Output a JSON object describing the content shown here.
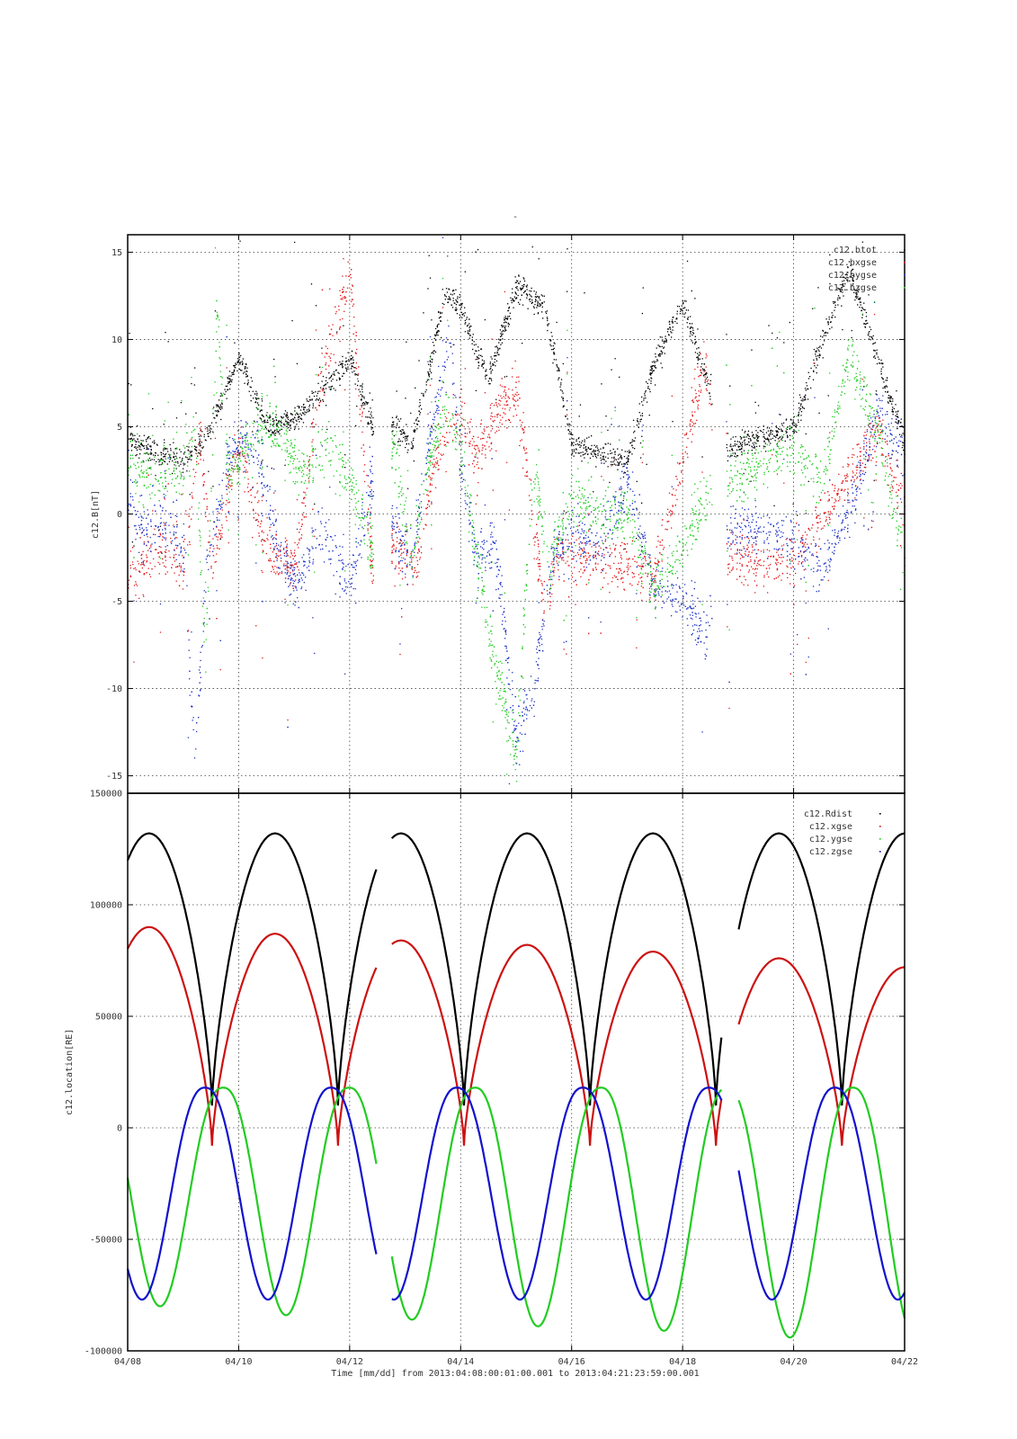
{
  "figure": {
    "top_title": "-",
    "xlabel": "Time [mm/dd]  from 2013:04:08:00:01:00.001  to  2013:04:21:23:59:00.001"
  },
  "chart_data": [
    {
      "type": "scatter",
      "ylabel": "c12.B[nT]",
      "ylim": [
        -16,
        16
      ],
      "yticks": [
        -15,
        -10,
        -5,
        0,
        5,
        10,
        15
      ],
      "xlim": [
        0,
        14
      ],
      "xtick_values": [
        0,
        2,
        4,
        6,
        8,
        10,
        12,
        14
      ],
      "xtick_labels": [
        "04/08",
        "04/10",
        "04/12",
        "04/14",
        "04/16",
        "04/18",
        "04/20",
        "04/22"
      ],
      "grid": true,
      "legend_position": "top-right",
      "data_gaps": [
        [
          4.42,
          4.75
        ],
        [
          10.52,
          10.78
        ]
      ],
      "series": [
        {
          "name": "c12.btot",
          "color": "#000000",
          "x": [
            0.0,
            0.5,
            1.0,
            1.5,
            2.0,
            2.5,
            3.0,
            3.5,
            4.0,
            4.4,
            4.8,
            5.1,
            5.4,
            5.7,
            6.0,
            6.3,
            6.5,
            6.7,
            7.0,
            7.5,
            8.0,
            8.5,
            9.0,
            9.5,
            10.0,
            10.4,
            10.8,
            11.0,
            11.5,
            12.0,
            12.5,
            13.0,
            13.5,
            14.0
          ],
          "y": [
            4.5,
            3.5,
            3.0,
            5.0,
            9.0,
            5.0,
            5.5,
            7.0,
            9.0,
            5.0,
            5.0,
            4.0,
            8.0,
            12.5,
            12.0,
            9.0,
            8.0,
            10.0,
            13.0,
            12.0,
            4.0,
            3.5,
            3.0,
            9.0,
            12.0,
            8.0,
            3.5,
            4.0,
            4.5,
            5.0,
            10.0,
            14.0,
            9.0,
            4.0
          ]
        },
        {
          "name": "c12.bxgse",
          "color": "#e41a1c",
          "x": [
            0.0,
            0.5,
            1.0,
            1.3,
            1.5,
            2.0,
            2.5,
            3.0,
            3.5,
            4.0,
            4.4,
            4.8,
            5.2,
            5.5,
            6.0,
            6.3,
            6.6,
            7.0,
            7.5,
            7.8,
            8.0,
            8.5,
            9.0,
            9.5,
            10.0,
            10.4,
            10.8,
            11.0,
            11.5,
            12.0,
            12.5,
            13.0,
            13.5,
            14.0
          ],
          "y": [
            -3.5,
            -2.0,
            -3.0,
            5.0,
            -3.0,
            4.0,
            -2.0,
            -3.0,
            8.0,
            14.0,
            -3.0,
            -2.0,
            -3.0,
            3.0,
            6.0,
            3.0,
            6.0,
            7.0,
            -5.0,
            -2.0,
            -2.5,
            -2.5,
            -3.0,
            -3.0,
            3.0,
            9.0,
            -2.5,
            -2.5,
            -3.0,
            -2.5,
            0.0,
            2.0,
            5.0,
            0.0
          ]
        },
        {
          "name": "c12.bygse",
          "color": "#1f32c8",
          "x": [
            0.0,
            0.3,
            0.6,
            1.0,
            1.2,
            1.4,
            1.8,
            2.0,
            2.3,
            2.7,
            3.0,
            3.5,
            4.0,
            4.4,
            4.8,
            5.1,
            5.4,
            5.8,
            6.0,
            6.3,
            6.6,
            7.0,
            7.3,
            7.6,
            8.0,
            8.5,
            9.0,
            9.5,
            10.0,
            10.4,
            10.8,
            11.0,
            11.5,
            12.0,
            12.5,
            13.0,
            13.5,
            14.0
          ],
          "y": [
            1.0,
            -1.0,
            -0.5,
            -2.0,
            -14.0,
            -3.0,
            3.0,
            4.0,
            4.0,
            -2.0,
            -4.0,
            -1.0,
            -4.0,
            2.0,
            -1.0,
            -3.0,
            4.0,
            10.0,
            3.0,
            -3.0,
            -1.0,
            -13.0,
            -10.0,
            -3.0,
            -1.0,
            -2.0,
            2.0,
            -4.0,
            -5.0,
            -7.0,
            -1.0,
            -1.0,
            -1.0,
            -1.5,
            -3.0,
            0.0,
            6.0,
            3.0
          ]
        },
        {
          "name": "c12.bzgse",
          "color": "#22cc22",
          "x": [
            0.0,
            0.5,
            1.0,
            1.2,
            1.4,
            1.6,
            1.8,
            2.0,
            2.3,
            2.7,
            3.0,
            3.3,
            3.6,
            4.0,
            4.4,
            4.8,
            5.1,
            5.4,
            5.7,
            6.0,
            6.3,
            6.6,
            7.0,
            7.3,
            7.6,
            8.0,
            8.5,
            9.0,
            9.5,
            10.0,
            10.4,
            10.8,
            11.0,
            11.5,
            12.0,
            12.5,
            13.0,
            13.5,
            14.0
          ],
          "y": [
            3.0,
            2.0,
            2.5,
            5.0,
            -8.0,
            12.0,
            2.0,
            3.0,
            5.0,
            5.0,
            3.0,
            2.5,
            4.0,
            2.0,
            -2.0,
            4.0,
            -3.0,
            3.0,
            6.0,
            4.0,
            -3.0,
            -8.0,
            -14.0,
            3.0,
            -3.0,
            1.0,
            0.0,
            0.0,
            -4.0,
            -2.0,
            1.0,
            2.0,
            2.0,
            3.0,
            4.0,
            2.0,
            9.0,
            5.0,
            -3.0
          ]
        }
      ]
    },
    {
      "type": "line",
      "ylabel": "c12.location[RE]",
      "ylim": [
        -100000,
        150000
      ],
      "yticks": [
        -100000,
        -50000,
        0,
        50000,
        100000,
        150000
      ],
      "xlim": [
        0,
        14
      ],
      "xtick_values": [
        0,
        2,
        4,
        6,
        8,
        10,
        12,
        14
      ],
      "xtick_labels": [
        "04/08",
        "04/10",
        "04/12",
        "04/14",
        "04/16",
        "04/18",
        "04/20",
        "04/22"
      ],
      "grid": true,
      "legend_position": "top-right",
      "orbit_period_days": 2.27,
      "perigee_day": 1.52,
      "data_gaps": [
        [
          4.48,
          4.75
        ],
        [
          10.7,
          11.0
        ]
      ],
      "series": [
        {
          "name": "c12.Rdist",
          "color": "#000000",
          "apogee": 132000,
          "perigee": 10000
        },
        {
          "name": "c12.xgse",
          "color": "#cc1111",
          "apogee": [
            90000,
            87000,
            84000,
            82000,
            79000,
            76000,
            72000
          ],
          "perigee": -8000
        },
        {
          "name": "c12.ygse",
          "color": "#22cc22",
          "max": 18000,
          "min": [
            -80000,
            -84000,
            -86000,
            -89000,
            -91000,
            -94000,
            -96000
          ]
        },
        {
          "name": "c12.zgse",
          "color": "#1111cc",
          "max": 18000,
          "min": -77000
        }
      ]
    }
  ]
}
